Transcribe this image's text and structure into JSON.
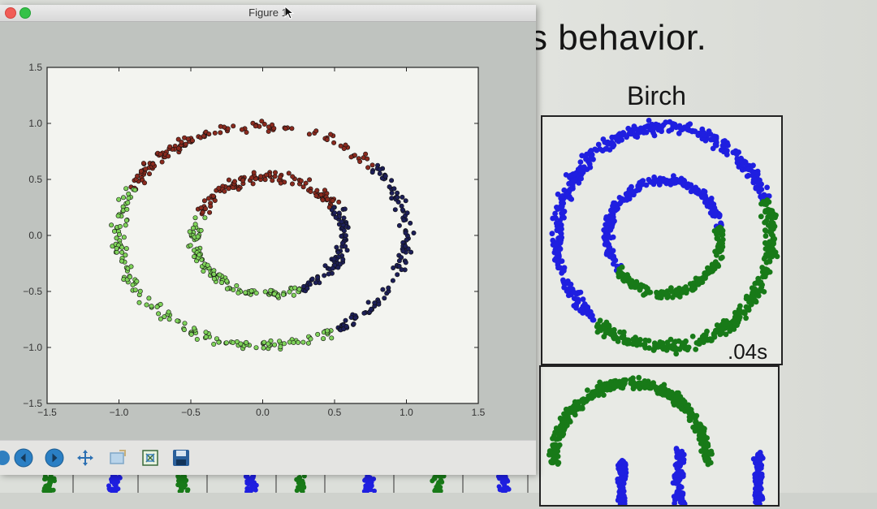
{
  "window": {
    "title": "Figure 1"
  },
  "slide": {
    "heading": "s behavior.",
    "panel_title": "Birch",
    "panel_time": ".04s"
  },
  "toolbar": {
    "buttons": [
      {
        "name": "back-button",
        "icon": "arrow-left-icon"
      },
      {
        "name": "forward-button",
        "icon": "arrow-right-icon"
      },
      {
        "name": "pan-button",
        "icon": "move-arrows-icon"
      },
      {
        "name": "zoom-button",
        "icon": "zoom-rect-icon"
      },
      {
        "name": "subplots-button",
        "icon": "subplots-icon"
      },
      {
        "name": "save-button",
        "icon": "floppy-disk-icon"
      }
    ]
  },
  "chart_data": {
    "type": "scatter",
    "title": "",
    "xlabel": "",
    "ylabel": "",
    "xlim": [
      -1.5,
      1.5
    ],
    "ylim": [
      -1.5,
      1.5
    ],
    "xticks": [
      "−1.5",
      "−1.0",
      "−0.5",
      "0.0",
      "0.5",
      "1.0",
      "1.5"
    ],
    "yticks": [
      "1.5",
      "1.0",
      "0.5",
      "0.0",
      "−0.5",
      "−1.0",
      "−1.5"
    ],
    "grid": false,
    "colors": {
      "red": "#8a2a1e",
      "green": "#7fd35a",
      "navy": "#1d1f58"
    },
    "rings": [
      {
        "center": [
          0.0,
          0.0
        ],
        "rx": 1.0,
        "ry": 0.98
      },
      {
        "center": [
          0.05,
          0.0
        ],
        "rx": 0.52,
        "ry": 0.52
      }
    ],
    "clusters": [
      {
        "color": "red",
        "outer_angle_deg": [
          40,
          155
        ],
        "inner_angle_deg": [
          30,
          160
        ]
      },
      {
        "color": "green",
        "outer_angle_deg": [
          155,
          300
        ],
        "inner_angle_deg": [
          160,
          295
        ]
      },
      {
        "color": "navy",
        "outer_angle_deg": [
          300,
          400
        ],
        "inner_angle_deg": [
          295,
          390
        ]
      }
    ]
  },
  "birch_chart": {
    "colors": {
      "blue": "#1f1fe0",
      "green": "#187a18"
    }
  }
}
